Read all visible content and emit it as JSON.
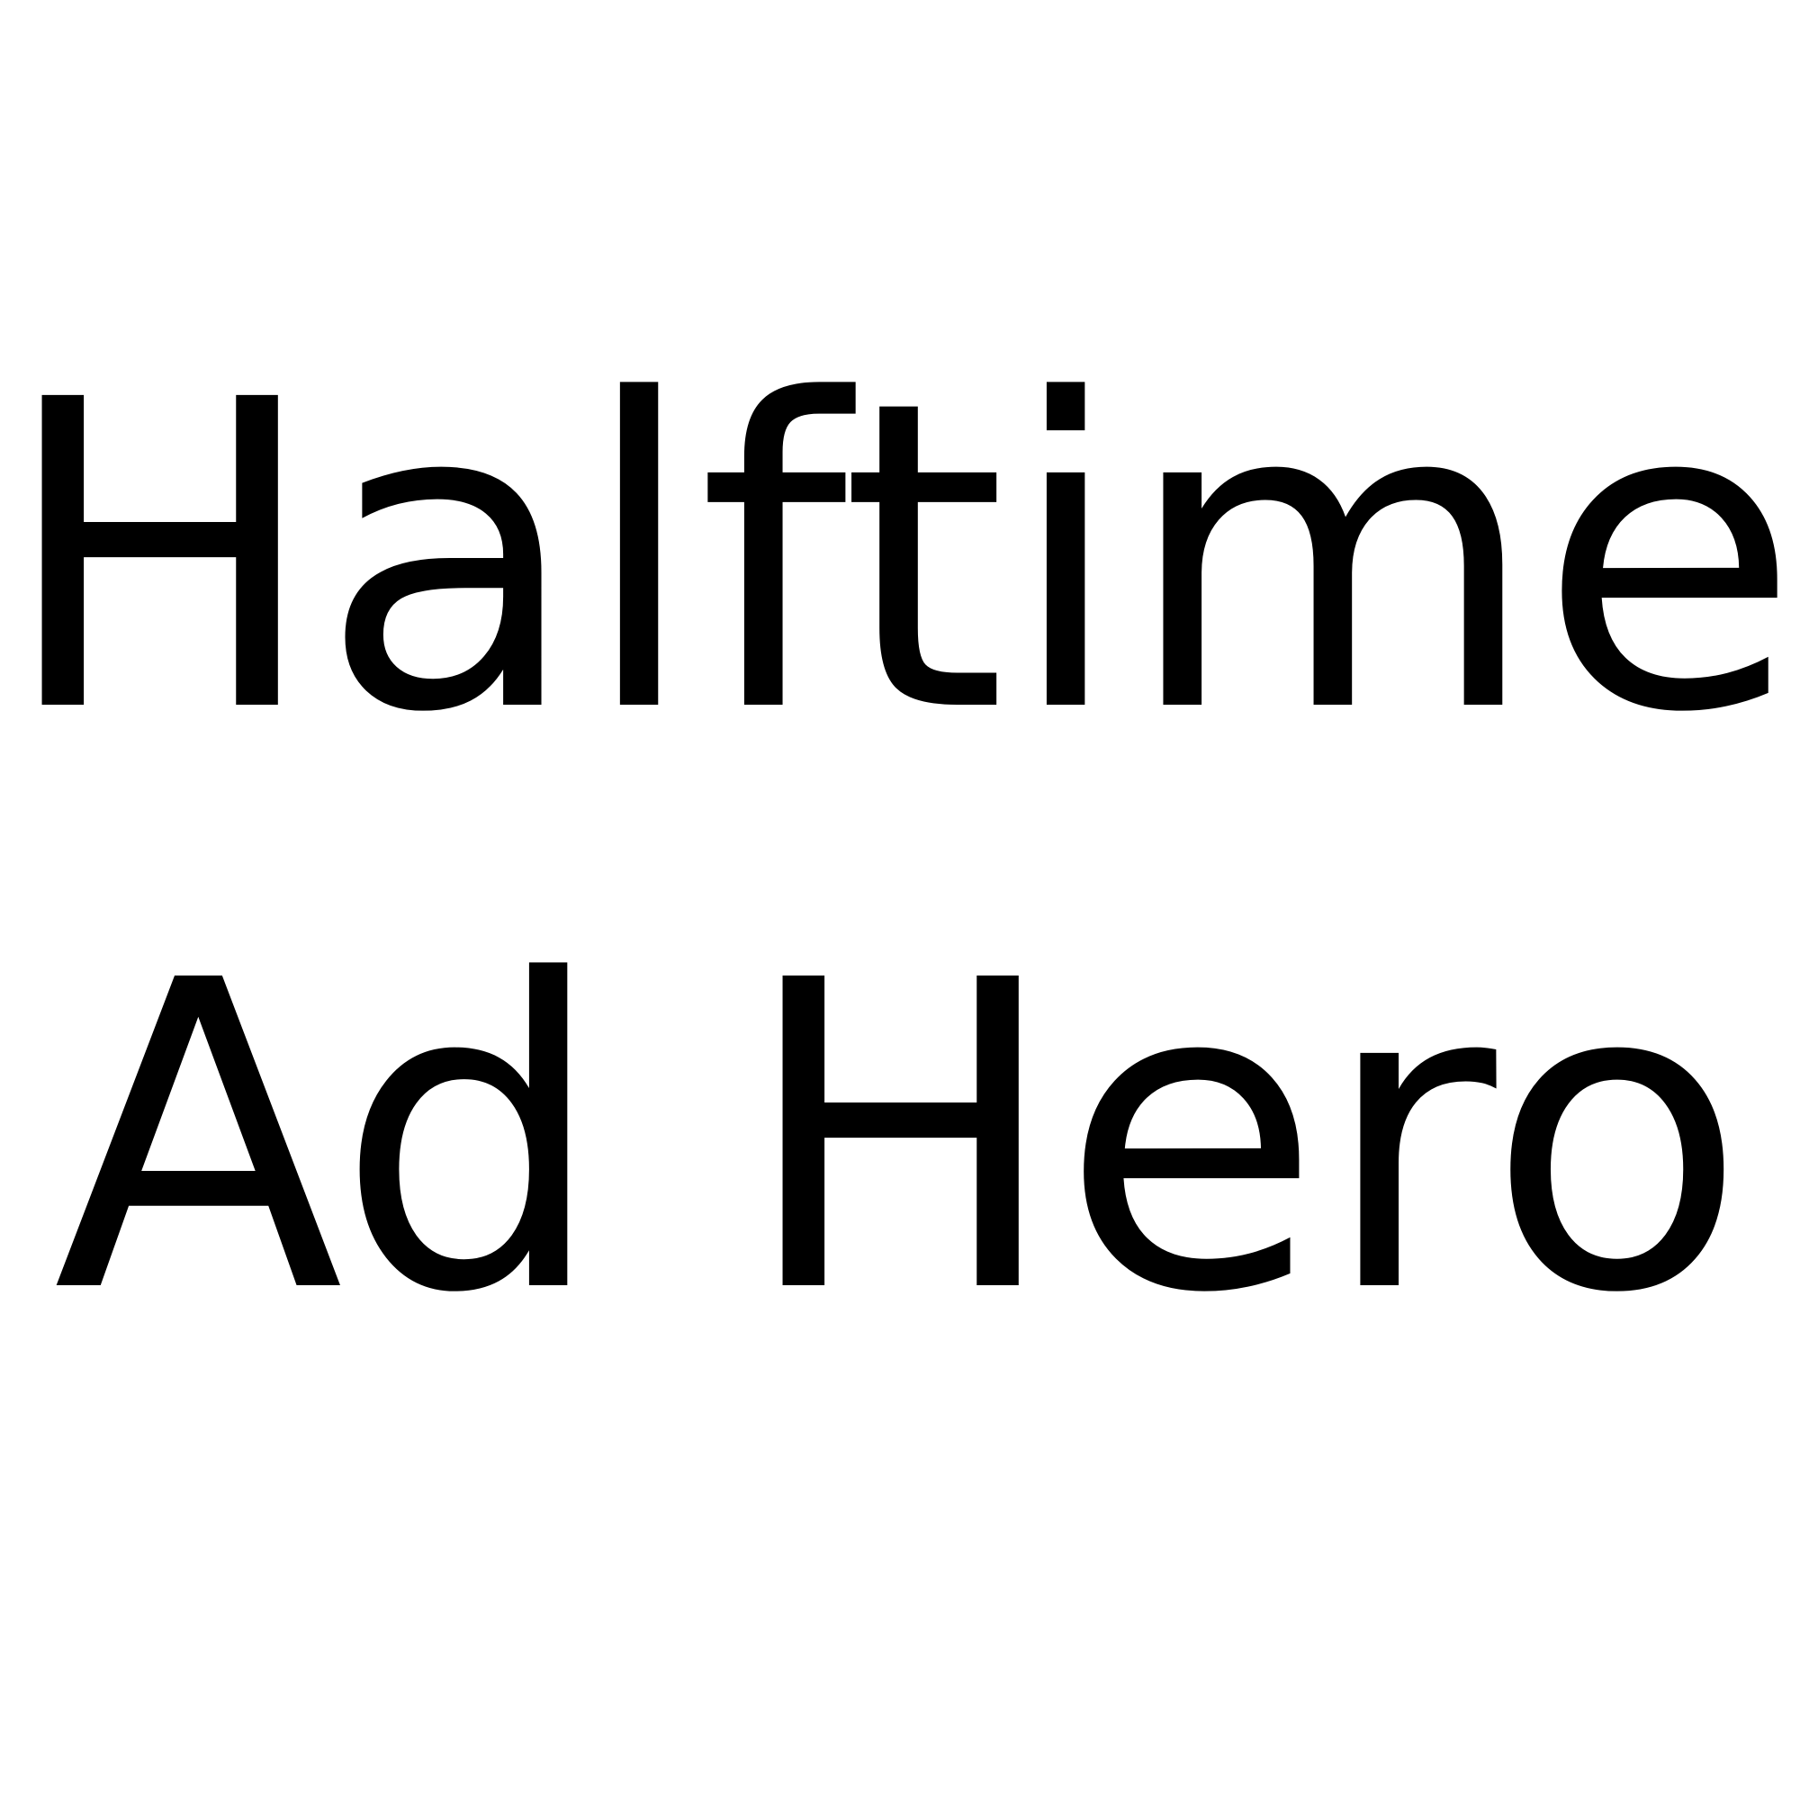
{
  "title": {
    "line1": "Halftime",
    "line2": "Ad Hero"
  },
  "colors": {
    "background": "#ffffff",
    "text": "#000000"
  }
}
